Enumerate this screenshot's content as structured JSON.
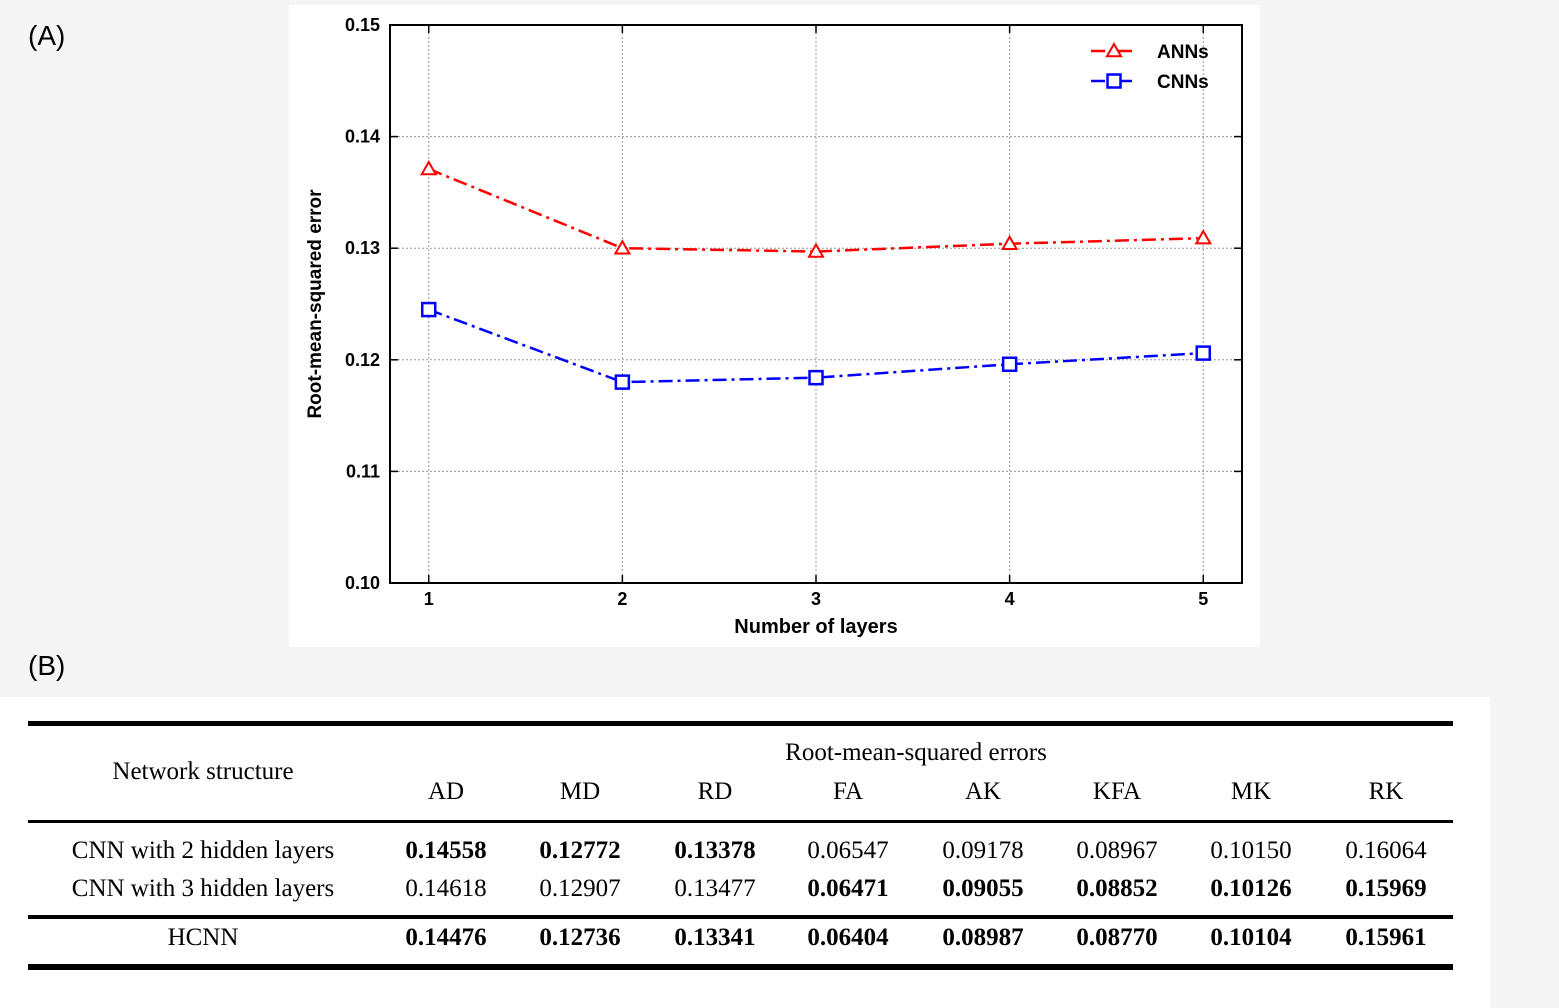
{
  "panel_labels": {
    "a": "(A)",
    "b": "(B)"
  },
  "chart_data": {
    "type": "line",
    "xlabel": "Number of layers",
    "ylabel": "Root-mean-squared error",
    "x": [
      1,
      2,
      3,
      4,
      5
    ],
    "xlim": [
      0.8,
      5.2
    ],
    "ylim": [
      0.1,
      0.15
    ],
    "xticks": [
      "1",
      "2",
      "3",
      "4",
      "5"
    ],
    "yticks": [
      "0.10",
      "0.11",
      "0.12",
      "0.13",
      "0.14",
      "0.15"
    ],
    "grid": true,
    "legend": "top-right",
    "series": [
      {
        "name": "ANNs",
        "color": "#ff0000",
        "marker": "triangle",
        "values": [
          0.1371,
          0.13,
          0.1297,
          0.1304,
          0.1309
        ]
      },
      {
        "name": "CNNs",
        "color": "#0000ff",
        "marker": "square",
        "values": [
          0.1245,
          0.118,
          0.1184,
          0.1196,
          0.1206
        ]
      }
    ]
  },
  "table": {
    "header": {
      "structure": "Network structure",
      "group": "Root-mean-squared errors",
      "columns": [
        "AD",
        "MD",
        "RD",
        "FA",
        "AK",
        "KFA",
        "MK",
        "RK"
      ]
    },
    "rows": [
      {
        "name": "CNN with 2 hidden layers",
        "values": [
          "0.14558",
          "0.12772",
          "0.13378",
          "0.06547",
          "0.09178",
          "0.08967",
          "0.10150",
          "0.16064"
        ],
        "bold": [
          true,
          true,
          true,
          false,
          false,
          false,
          false,
          false
        ]
      },
      {
        "name": "CNN with 3 hidden layers",
        "values": [
          "0.14618",
          "0.12907",
          "0.13477",
          "0.06471",
          "0.09055",
          "0.08852",
          "0.10126",
          "0.15969"
        ],
        "bold": [
          false,
          false,
          false,
          true,
          true,
          true,
          true,
          true
        ]
      },
      {
        "name": "HCNN",
        "values": [
          "0.14476",
          "0.12736",
          "0.13341",
          "0.06404",
          "0.08987",
          "0.08770",
          "0.10104",
          "0.15961"
        ],
        "bold": [
          true,
          true,
          true,
          true,
          true,
          true,
          true,
          true
        ]
      }
    ]
  }
}
